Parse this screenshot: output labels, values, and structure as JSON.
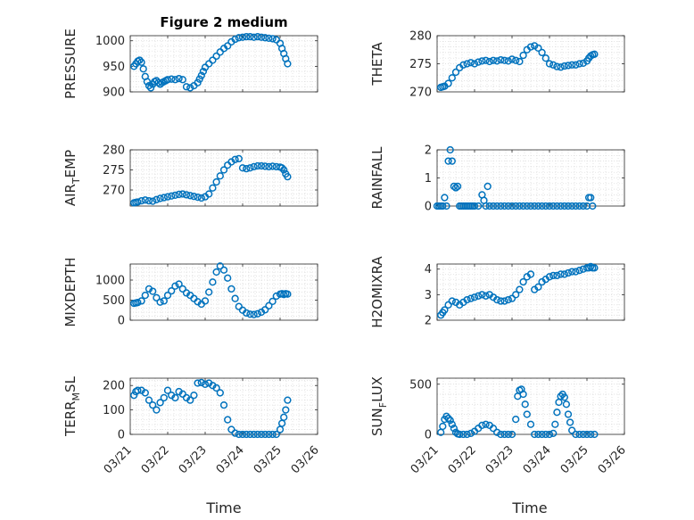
{
  "figure": {
    "title": "Figure 2 medium",
    "xlabel": "Time",
    "date_tick_labels": [
      "03/21",
      "03/22",
      "03/23",
      "03/24",
      "03/25",
      "03/26"
    ]
  },
  "style": {
    "marker_color": "#0072bd",
    "axis_color": "#262626",
    "grid_color": "#d8d8d8",
    "background": "#ffffff"
  },
  "chart_data": [
    {
      "type": "scatter",
      "id": "pressure",
      "ylabel": "PRESSURE",
      "ylabel_main": "PRESSURE",
      "ylabel_sub": "",
      "ylabel_rest": "",
      "xlim": [
        "03/21",
        "03/26"
      ],
      "ylim": [
        900,
        1010
      ],
      "yticks": [
        900,
        950,
        1000
      ],
      "grid": "dotted",
      "show_xticks": false,
      "x_days": [
        0.1,
        0.15,
        0.2,
        0.25,
        0.3,
        0.35,
        0.4,
        0.45,
        0.5,
        0.55,
        0.6,
        0.65,
        0.7,
        0.75,
        0.8,
        0.85,
        0.9,
        0.95,
        1.0,
        1.1,
        1.2,
        1.3,
        1.4,
        1.5,
        1.6,
        1.7,
        1.8,
        1.85,
        1.9,
        1.95,
        2.0,
        2.1,
        2.2,
        2.3,
        2.4,
        2.5,
        2.6,
        2.7,
        2.8,
        2.9,
        3.0,
        3.1,
        3.2,
        3.3,
        3.4,
        3.5,
        3.6,
        3.7,
        3.8,
        3.9,
        4.0,
        4.05,
        4.1,
        4.15,
        4.2
      ],
      "y": [
        950,
        955,
        960,
        962,
        958,
        945,
        930,
        920,
        912,
        908,
        915,
        920,
        922,
        918,
        915,
        918,
        920,
        922,
        924,
        925,
        924,
        926,
        924,
        910,
        908,
        912,
        918,
        925,
        932,
        940,
        948,
        955,
        962,
        970,
        978,
        985,
        990,
        998,
        1003,
        1006,
        1007,
        1008,
        1008,
        1007,
        1008,
        1007,
        1006,
        1005,
        1004,
        1002,
        995,
        985,
        975,
        965,
        955
      ]
    },
    {
      "type": "scatter",
      "id": "theta",
      "ylabel": "THETA",
      "ylabel_main": "THETA",
      "ylabel_sub": "",
      "ylabel_rest": "",
      "xlim": [
        "03/21",
        "03/26"
      ],
      "ylim": [
        270,
        280
      ],
      "yticks": [
        270,
        275,
        280
      ],
      "grid": "dotted",
      "show_xticks": false,
      "x_days": [
        0.1,
        0.15,
        0.2,
        0.3,
        0.4,
        0.5,
        0.6,
        0.7,
        0.8,
        0.9,
        1.0,
        1.1,
        1.2,
        1.3,
        1.4,
        1.5,
        1.6,
        1.7,
        1.8,
        1.9,
        2.0,
        2.1,
        2.2,
        2.3,
        2.4,
        2.5,
        2.6,
        2.7,
        2.8,
        2.9,
        3.0,
        3.1,
        3.2,
        3.3,
        3.4,
        3.5,
        3.6,
        3.7,
        3.8,
        3.9,
        4.0,
        4.05,
        4.1,
        4.15,
        4.2
      ],
      "y": [
        270.8,
        270.9,
        271.0,
        271.5,
        272.5,
        273.5,
        274.3,
        274.8,
        275.0,
        275.2,
        275.0,
        275.3,
        275.5,
        275.6,
        275.4,
        275.6,
        275.5,
        275.7,
        275.6,
        275.5,
        275.8,
        275.6,
        275.4,
        276.5,
        277.5,
        278.0,
        278.2,
        277.8,
        277.0,
        276.0,
        275.0,
        274.8,
        274.5,
        274.4,
        274.6,
        274.7,
        274.8,
        274.8,
        275.0,
        275.1,
        275.5,
        276.0,
        276.4,
        276.6,
        276.7
      ]
    },
    {
      "type": "scatter",
      "id": "air_temp",
      "ylabel": "AIR_TEMP",
      "ylabel_main": "AIR",
      "ylabel_sub": "T",
      "ylabel_rest": "EMP",
      "xlim": [
        "03/21",
        "03/26"
      ],
      "ylim": [
        266,
        280
      ],
      "yticks": [
        270,
        275,
        280
      ],
      "grid": "dotted",
      "show_xticks": false,
      "x_days": [
        0.1,
        0.15,
        0.2,
        0.3,
        0.4,
        0.5,
        0.6,
        0.7,
        0.8,
        0.9,
        1.0,
        1.1,
        1.2,
        1.3,
        1.4,
        1.5,
        1.6,
        1.7,
        1.8,
        1.9,
        2.0,
        2.1,
        2.2,
        2.3,
        2.4,
        2.5,
        2.6,
        2.7,
        2.8,
        2.9,
        3.0,
        3.1,
        3.2,
        3.3,
        3.4,
        3.5,
        3.6,
        3.7,
        3.8,
        3.9,
        4.0,
        4.05,
        4.1,
        4.15,
        4.2
      ],
      "y": [
        266.8,
        266.9,
        267.0,
        267.3,
        267.5,
        267.3,
        267.2,
        267.6,
        267.9,
        268.1,
        268.3,
        268.5,
        268.7,
        268.9,
        269.0,
        268.8,
        268.6,
        268.4,
        268.2,
        268.0,
        268.3,
        269.0,
        270.5,
        272.0,
        273.5,
        275.0,
        276.2,
        277.0,
        277.6,
        277.8,
        275.5,
        275.3,
        275.5,
        275.8,
        276.0,
        276.0,
        275.9,
        275.8,
        275.9,
        275.8,
        275.7,
        275.5,
        275.0,
        274.0,
        273.3
      ]
    },
    {
      "type": "scatter",
      "id": "rainfall",
      "ylabel": "RAINFALL",
      "ylabel_main": "RAINFALL",
      "ylabel_sub": "",
      "ylabel_rest": "",
      "xlim": [
        "03/21",
        "03/26"
      ],
      "ylim": [
        0,
        2
      ],
      "yticks": [
        0,
        1,
        2
      ],
      "grid": "dotted",
      "show_xticks": false,
      "x_days": [
        0.0,
        0.05,
        0.1,
        0.15,
        0.2,
        0.25,
        0.3,
        0.35,
        0.4,
        0.45,
        0.5,
        0.55,
        0.6,
        0.65,
        0.7,
        0.75,
        0.8,
        0.85,
        0.9,
        0.95,
        1.0,
        1.1,
        1.2,
        1.25,
        1.3,
        1.35,
        1.4,
        1.5,
        1.6,
        1.7,
        1.8,
        1.9,
        2.0,
        2.1,
        2.2,
        2.3,
        2.4,
        2.5,
        2.6,
        2.7,
        2.8,
        2.9,
        3.0,
        3.1,
        3.2,
        3.3,
        3.4,
        3.5,
        3.6,
        3.7,
        3.8,
        3.9,
        4.0,
        4.05,
        4.1,
        4.15
      ],
      "y": [
        0,
        0,
        0,
        0,
        0.3,
        0,
        1.6,
        2.0,
        1.6,
        0.7,
        0.65,
        0.7,
        0,
        0,
        0,
        0,
        0,
        0,
        0,
        0,
        0,
        0,
        0.4,
        0.2,
        0,
        0.7,
        0,
        0,
        0,
        0,
        0,
        0,
        0,
        0,
        0,
        0,
        0,
        0,
        0,
        0,
        0,
        0,
        0,
        0,
        0,
        0,
        0,
        0,
        0,
        0,
        0,
        0,
        0,
        0.3,
        0.3,
        0
      ]
    },
    {
      "type": "scatter",
      "id": "mixdepth",
      "ylabel": "MIXDEPTH",
      "ylabel_main": "MIXDEPTH",
      "ylabel_sub": "",
      "ylabel_rest": "",
      "xlim": [
        "03/21",
        "03/26"
      ],
      "ylim": [
        0,
        1400
      ],
      "yticks": [
        0,
        500,
        1000
      ],
      "grid": "dotted",
      "show_xticks": false,
      "x_days": [
        0.1,
        0.15,
        0.2,
        0.3,
        0.4,
        0.5,
        0.6,
        0.7,
        0.8,
        0.9,
        1.0,
        1.1,
        1.2,
        1.3,
        1.4,
        1.5,
        1.6,
        1.7,
        1.8,
        1.9,
        2.0,
        2.1,
        2.2,
        2.3,
        2.4,
        2.5,
        2.6,
        2.7,
        2.8,
        2.9,
        3.0,
        3.1,
        3.2,
        3.3,
        3.4,
        3.5,
        3.6,
        3.7,
        3.8,
        3.9,
        4.0,
        4.05,
        4.1,
        4.15,
        4.2
      ],
      "y": [
        420,
        430,
        440,
        480,
        620,
        780,
        720,
        560,
        450,
        480,
        620,
        730,
        850,
        900,
        780,
        680,
        620,
        540,
        460,
        400,
        480,
        700,
        950,
        1200,
        1350,
        1250,
        1050,
        780,
        540,
        340,
        250,
        180,
        150,
        140,
        160,
        200,
        260,
        360,
        470,
        600,
        650,
        660,
        640,
        660,
        650
      ]
    },
    {
      "type": "scatter",
      "id": "h2omixra",
      "ylabel": "H2OMIXRA",
      "ylabel_main": "H2OMIXRA",
      "ylabel_sub": "",
      "ylabel_rest": "",
      "xlim": [
        "03/21",
        "03/26"
      ],
      "ylim": [
        2,
        4.2
      ],
      "yticks": [
        2,
        3,
        4
      ],
      "grid": "dotted",
      "show_xticks": false,
      "x_days": [
        0.1,
        0.15,
        0.2,
        0.3,
        0.4,
        0.5,
        0.6,
        0.7,
        0.8,
        0.9,
        1.0,
        1.1,
        1.2,
        1.3,
        1.4,
        1.5,
        1.6,
        1.7,
        1.8,
        1.9,
        2.0,
        2.1,
        2.2,
        2.3,
        2.4,
        2.5,
        2.6,
        2.7,
        2.8,
        2.9,
        3.0,
        3.1,
        3.2,
        3.3,
        3.4,
        3.5,
        3.6,
        3.7,
        3.8,
        3.9,
        4.0,
        4.05,
        4.1,
        4.15,
        4.2
      ],
      "y": [
        2.2,
        2.3,
        2.4,
        2.6,
        2.75,
        2.7,
        2.6,
        2.7,
        2.8,
        2.85,
        2.9,
        2.95,
        3.0,
        2.95,
        3.0,
        2.9,
        2.8,
        2.75,
        2.75,
        2.8,
        2.85,
        3.0,
        3.2,
        3.5,
        3.7,
        3.8,
        3.2,
        3.3,
        3.5,
        3.6,
        3.7,
        3.75,
        3.75,
        3.8,
        3.8,
        3.85,
        3.9,
        3.9,
        3.95,
        4.0,
        4.05,
        4.05,
        4.1,
        4.05,
        4.05
      ]
    },
    {
      "type": "scatter",
      "id": "terr_msl",
      "ylabel": "TERR_MSL",
      "ylabel_main": "TERR",
      "ylabel_sub": "M",
      "ylabel_rest": "SL",
      "xlim": [
        "03/21",
        "03/26"
      ],
      "ylim": [
        0,
        230
      ],
      "yticks": [
        0,
        100,
        200
      ],
      "grid": "dotted",
      "show_xticks": true,
      "x_days": [
        0.1,
        0.15,
        0.2,
        0.3,
        0.4,
        0.5,
        0.6,
        0.7,
        0.8,
        0.9,
        1.0,
        1.1,
        1.2,
        1.3,
        1.4,
        1.5,
        1.6,
        1.7,
        1.8,
        1.9,
        2.0,
        2.1,
        2.2,
        2.3,
        2.4,
        2.5,
        2.6,
        2.7,
        2.8,
        2.9,
        3.0,
        3.1,
        3.2,
        3.3,
        3.4,
        3.5,
        3.6,
        3.7,
        3.8,
        3.9,
        4.0,
        4.05,
        4.1,
        4.15,
        4.2
      ],
      "y": [
        160,
        175,
        180,
        180,
        170,
        140,
        120,
        100,
        130,
        150,
        180,
        160,
        150,
        175,
        165,
        150,
        140,
        160,
        210,
        212,
        205,
        210,
        200,
        190,
        170,
        120,
        60,
        20,
        5,
        0,
        0,
        0,
        0,
        0,
        0,
        0,
        0,
        0,
        0,
        0,
        20,
        45,
        70,
        100,
        140
      ]
    },
    {
      "type": "scatter",
      "id": "sun_flux",
      "ylabel": "SUN_FLUX",
      "ylabel_main": "SUN",
      "ylabel_sub": "F",
      "ylabel_rest": "LUX",
      "xlim": [
        "03/21",
        "03/26"
      ],
      "ylim": [
        0,
        560
      ],
      "yticks": [
        0,
        500
      ],
      "grid": "dotted",
      "show_xticks": true,
      "x_days": [
        0.1,
        0.15,
        0.2,
        0.25,
        0.3,
        0.35,
        0.4,
        0.45,
        0.5,
        0.55,
        0.6,
        0.7,
        0.8,
        0.9,
        1.0,
        1.1,
        1.2,
        1.3,
        1.4,
        1.5,
        1.6,
        1.7,
        1.8,
        1.9,
        2.0,
        2.1,
        2.15,
        2.2,
        2.25,
        2.3,
        2.35,
        2.4,
        2.5,
        2.6,
        2.7,
        2.8,
        2.9,
        3.0,
        3.1,
        3.15,
        3.2,
        3.25,
        3.3,
        3.35,
        3.4,
        3.45,
        3.5,
        3.55,
        3.6,
        3.7,
        3.8,
        3.9,
        4.0,
        4.1,
        4.2
      ],
      "y": [
        20,
        80,
        150,
        180,
        160,
        140,
        100,
        60,
        20,
        5,
        0,
        0,
        0,
        10,
        30,
        60,
        90,
        100,
        90,
        60,
        20,
        0,
        0,
        0,
        0,
        150,
        380,
        440,
        450,
        400,
        300,
        200,
        100,
        0,
        0,
        0,
        0,
        0,
        10,
        100,
        220,
        320,
        380,
        400,
        370,
        300,
        200,
        120,
        40,
        0,
        0,
        0,
        0,
        0,
        0
      ]
    }
  ]
}
